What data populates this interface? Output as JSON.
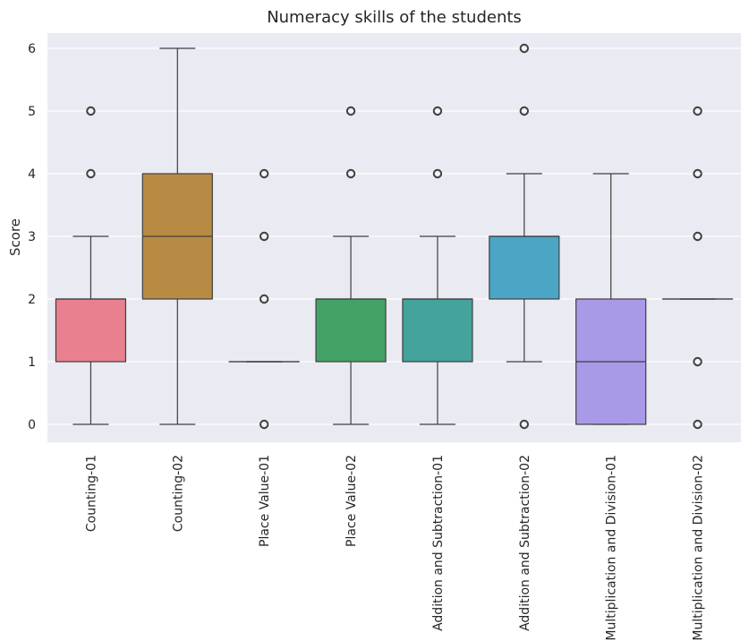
{
  "chart_data": {
    "type": "box",
    "title": "Numeracy skills of the students",
    "xlabel": "",
    "ylabel": "Score",
    "ylim": [
      -0.3,
      6.3
    ],
    "yticks": [
      0,
      1,
      2,
      3,
      4,
      5,
      6
    ],
    "grid": true,
    "categories": [
      "Counting-01",
      "Counting-02",
      "Place Value-01",
      "Place Value-02",
      "Addition and Subtraction-01",
      "Addition and Subtraction-02",
      "Multiplication and Division-01",
      "Multiplication and Division-02"
    ],
    "boxes": [
      {
        "q1": 1,
        "median": 2,
        "q3": 2,
        "whisker_low": 0,
        "whisker_high": 3,
        "outliers": [
          4,
          5
        ],
        "color": "#e8808f"
      },
      {
        "q1": 2,
        "median": 3,
        "q3": 4,
        "whisker_low": 0,
        "whisker_high": 6,
        "outliers": [],
        "color": "#b88b44"
      },
      {
        "q1": 1,
        "median": 1,
        "q3": 1,
        "whisker_low": 1,
        "whisker_high": 1,
        "outliers": [
          0,
          2,
          3,
          4
        ],
        "color": "#8aa64c"
      },
      {
        "q1": 1,
        "median": 2,
        "q3": 2,
        "whisker_low": 0,
        "whisker_high": 3,
        "outliers": [
          4,
          5
        ],
        "color": "#44a266"
      },
      {
        "q1": 1,
        "median": 2,
        "q3": 2,
        "whisker_low": 0,
        "whisker_high": 3,
        "outliers": [
          4,
          5
        ],
        "color": "#44a39a"
      },
      {
        "q1": 2,
        "median": 3,
        "q3": 3,
        "whisker_low": 1,
        "whisker_high": 4,
        "outliers": [
          0,
          5,
          6
        ],
        "color": "#4ba6c6"
      },
      {
        "q1": 0,
        "median": 1,
        "q3": 2,
        "whisker_low": 0,
        "whisker_high": 4,
        "outliers": [],
        "color": "#a99ae8"
      },
      {
        "q1": 2,
        "median": 2,
        "q3": 2,
        "whisker_low": 2,
        "whisker_high": 2,
        "outliers": [
          0,
          1,
          3,
          4,
          5
        ],
        "color": "#e28ed8"
      }
    ]
  },
  "style": {
    "plot_background": "#eaeaf2",
    "grid_color": "#ffffff",
    "box_edge_color": "#3f3f3f"
  }
}
